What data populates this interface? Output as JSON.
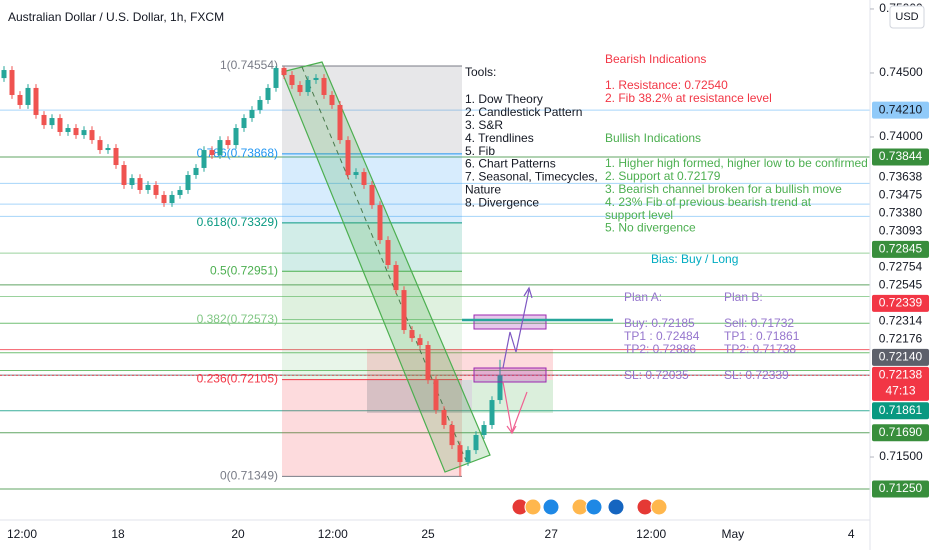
{
  "chart_data": {
    "type": "candlestick",
    "title": "Australian Dollar / U.S. Dollar, 1h, FXCM",
    "currency": "USD",
    "up_color": "#26a69a",
    "down_color": "#ef5350",
    "open": [
      0.7446,
      0.74523,
      0.74328,
      0.7425,
      0.74383,
      0.74172,
      0.74093,
      0.74148,
      0.74039,
      0.7407,
      0.74015,
      0.74054,
      0.73976,
      0.73898,
      0.73914,
      0.73781,
      0.73625,
      0.73679,
      0.73586,
      0.73625,
      0.73547,
      0.73484,
      0.73547,
      0.73586,
      0.73703,
      0.73758,
      0.73898,
      0.73859,
      0.73976,
      0.73937,
      0.7407,
      0.74148,
      0.74211,
      0.74289,
      0.74383,
      0.74539,
      0.74484,
      0.74406,
      0.74351,
      0.74445,
      0.74461,
      0.74328,
      0.7425,
      0.73976,
      0.73703,
      0.73726,
      0.73625,
      0.73468,
      0.73195,
      0.73,
      0.72804,
      0.72492,
      0.72429,
      0.72375,
      0.72101,
      0.71867,
      0.7175,
      0.71593,
      0.71461,
      0.71554,
      0.71672,
      0.7175,
      0.71945
    ],
    "high": [
      0.74553,
      0.74553,
      0.74358,
      0.74413,
      0.74413,
      0.74202,
      0.74178,
      0.74178,
      0.741,
      0.741,
      0.74084,
      0.74084,
      0.74006,
      0.73944,
      0.73944,
      0.73811,
      0.73709,
      0.73709,
      0.73655,
      0.73655,
      0.73577,
      0.73577,
      0.73616,
      0.73733,
      0.73788,
      0.73928,
      0.73928,
      0.74006,
      0.74006,
      0.741,
      0.74178,
      0.74241,
      0.74319,
      0.74413,
      0.74554,
      0.7455,
      0.74514,
      0.74436,
      0.74475,
      0.74491,
      0.74491,
      0.74358,
      0.7428,
      0.74006,
      0.73756,
      0.73756,
      0.73655,
      0.73498,
      0.73225,
      0.7303,
      0.72834,
      0.72522,
      0.72459,
      0.72405,
      0.72131,
      0.71897,
      0.7178,
      0.71623,
      0.71584,
      0.71702,
      0.7178,
      0.71975,
      0.7226
    ],
    "low": [
      0.7443,
      0.74298,
      0.7422,
      0.7422,
      0.74142,
      0.74063,
      0.74063,
      0.74009,
      0.74009,
      0.73985,
      0.73985,
      0.73946,
      0.73868,
      0.73868,
      0.73751,
      0.73595,
      0.73595,
      0.73556,
      0.73556,
      0.73517,
      0.73454,
      0.73454,
      0.73517,
      0.73556,
      0.73673,
      0.73728,
      0.73829,
      0.73829,
      0.73907,
      0.73907,
      0.7404,
      0.74118,
      0.74181,
      0.74259,
      0.74353,
      0.74454,
      0.74376,
      0.74321,
      0.74321,
      0.74415,
      0.74298,
      0.7422,
      0.73946,
      0.73673,
      0.73673,
      0.73595,
      0.73438,
      0.73165,
      0.7297,
      0.72774,
      0.72462,
      0.72399,
      0.72345,
      0.72071,
      0.71837,
      0.7172,
      0.71563,
      0.71349,
      0.71431,
      0.71524,
      0.71642,
      0.7172,
      0.71915
    ],
    "close": [
      0.74523,
      0.74328,
      0.7425,
      0.74383,
      0.74172,
      0.74093,
      0.74148,
      0.74039,
      0.7407,
      0.74015,
      0.74054,
      0.73976,
      0.73898,
      0.73914,
      0.73781,
      0.73625,
      0.73679,
      0.73586,
      0.73625,
      0.73547,
      0.73484,
      0.73547,
      0.73586,
      0.73703,
      0.73758,
      0.73898,
      0.73859,
      0.73976,
      0.73937,
      0.7407,
      0.74148,
      0.74211,
      0.74289,
      0.74383,
      0.74539,
      0.74484,
      0.74406,
      0.74351,
      0.74445,
      0.74461,
      0.74328,
      0.7425,
      0.73976,
      0.73703,
      0.73726,
      0.73625,
      0.73468,
      0.73195,
      0.73,
      0.72804,
      0.72492,
      0.72429,
      0.72375,
      0.72101,
      0.71867,
      0.7175,
      0.71593,
      0.71461,
      0.71554,
      0.71672,
      0.7175,
      0.71945,
      0.72138
    ],
    "xlim": [
      -0.5,
      108.25
    ],
    "xticks": [
      {
        "value": 2.25,
        "label": "12:00"
      },
      {
        "value": 14.25,
        "label": "18"
      },
      {
        "value": 29.25,
        "label": "20"
      },
      {
        "value": 41.1,
        "label": "12:00"
      },
      {
        "value": 53,
        "label": "25"
      },
      {
        "value": 68.4,
        "label": "27"
      },
      {
        "value": 80.9,
        "label": "12:00"
      },
      {
        "value": 91.1,
        "label": "May"
      },
      {
        "value": 105.9,
        "label": "4"
      }
    ],
    "ylim": [
      0.71008,
      0.7507
    ],
    "yticks": [
      {
        "value": 0.75,
        "label": "0.75000"
      },
      {
        "value": 0.745,
        "label": "0.74500"
      },
      {
        "value": 0.74,
        "label": "0.74000"
      },
      {
        "value": 0.715,
        "label": "0.71500"
      }
    ],
    "levels": [
      {
        "value": 0.7421,
        "label": "0.74210",
        "color": "#90caf9",
        "filled": true
      },
      {
        "value": 0.73844,
        "label": "0.73844",
        "color": "#388e3c",
        "filled": true
      },
      {
        "value": 0.73638,
        "label": "0.73638",
        "color": "#90caf9",
        "filled": false
      },
      {
        "value": 0.73475,
        "label": "0.73475",
        "color": "#90caf9",
        "filled": false
      },
      {
        "value": 0.7338,
        "label": "0.73380",
        "color": "#90caf9",
        "filled": false
      },
      {
        "value": 0.73093,
        "label": "0.73093",
        "color": "#81c784",
        "filled": false
      },
      {
        "value": 0.72845,
        "label": "0.72845",
        "color": "#388e3c",
        "filled": true
      },
      {
        "value": 0.72754,
        "label": "0.72754",
        "color": "#81c784",
        "filled": false
      },
      {
        "value": 0.72545,
        "label": "0.72545",
        "color": "#4caf50",
        "filled": false
      },
      {
        "value": 0.72339,
        "label": "0.72339",
        "color": "#f23645",
        "filled": true
      },
      {
        "value": 0.72314,
        "label": "0.72314",
        "color": "#4caf50",
        "filled": false
      },
      {
        "value": 0.72176,
        "label": "0.72176",
        "color": "#4caf50",
        "filled": false
      },
      {
        "value": 0.7214,
        "label": "0.72140",
        "color": "#5d606b",
        "filled": true
      },
      {
        "value": 0.72138,
        "label": "0.72138",
        "color": "#f23645",
        "filled": true,
        "sublabel": "47:13",
        "line_style": "dotted"
      },
      {
        "value": 0.71861,
        "label": "0.71861",
        "color": "#089981",
        "filled": true
      },
      {
        "value": 0.7169,
        "label": "0.71690",
        "color": "#388e3c",
        "filled": true
      },
      {
        "value": 0.7125,
        "label": "0.71250",
        "color": "#388e3c",
        "filled": true
      }
    ],
    "fib_levels": [
      {
        "value": 0.74554,
        "label": "1(0.74554)",
        "color": "#787b86"
      },
      {
        "value": 0.73868,
        "label": "0.786(0.73868)",
        "color": "#2196f3"
      },
      {
        "value": 0.73329,
        "label": "0.618(0.73329)",
        "color": "#089981"
      },
      {
        "value": 0.72951,
        "label": "0.5(0.72951)",
        "color": "#4caf50"
      },
      {
        "value": 0.72573,
        "label": "0.382(0.72573)",
        "color": "#81c784"
      },
      {
        "value": 0.72105,
        "label": "0.236(0.72105)",
        "color": "#f23645"
      },
      {
        "value": 0.71349,
        "label": "0(0.71349)",
        "color": "#787b86"
      }
    ],
    "annotations": [
      {
        "color": "#131722",
        "lines": [
          "Tools:"
        ]
      },
      {
        "color": "#131722",
        "lines": [
          "1. Dow Theory",
          "2. Candlestick Pattern",
          "3. S&R",
          "4. Trendlines",
          "5. Fib",
          "6. Chart Patterns",
          "7. Seasonal, Timecycles,",
          "Nature",
          "8. Divergence"
        ]
      },
      {
        "color": "#f23645",
        "lines": [
          "Bearish Indications"
        ]
      },
      {
        "color": "#f23645",
        "lines": [
          "1. Resistance: 0.72540",
          "2. Fib 38.2% at resistance level"
        ]
      },
      {
        "color": "#4caf50",
        "lines": [
          "Bullish Indications"
        ]
      },
      {
        "color": "#4caf50",
        "lines": [
          "1. Higher high formed, higher low to be confirmed",
          "2. Support at 0.72179",
          "3. Bearish channel broken for a bullish move",
          "4. 23% Fib of previous bearish trend at",
          "support level",
          "5. No divergence"
        ]
      },
      {
        "color": "#00acc1",
        "lines": [
          "Bias: Buy / Long"
        ]
      },
      {
        "color": "#9575cd",
        "lines": [
          "Plan A:"
        ]
      },
      {
        "color": "#9575cd",
        "lines": [
          "Buy: 0.72185",
          "TP1 : 0.72484",
          "TP2: 0.72886"
        ]
      },
      {
        "color": "#9575cd",
        "lines": [
          "SL: 0.72035"
        ]
      },
      {
        "color": "#9575cd",
        "lines": [
          "Plan B:"
        ]
      },
      {
        "color": "#9575cd",
        "lines": [
          "Sell: 0.71732",
          "TP1 : 0.71861",
          "TP2: 0.71738"
        ]
      },
      {
        "color": "#9575cd",
        "lines": [
          "SL: 0.72339"
        ]
      }
    ]
  }
}
